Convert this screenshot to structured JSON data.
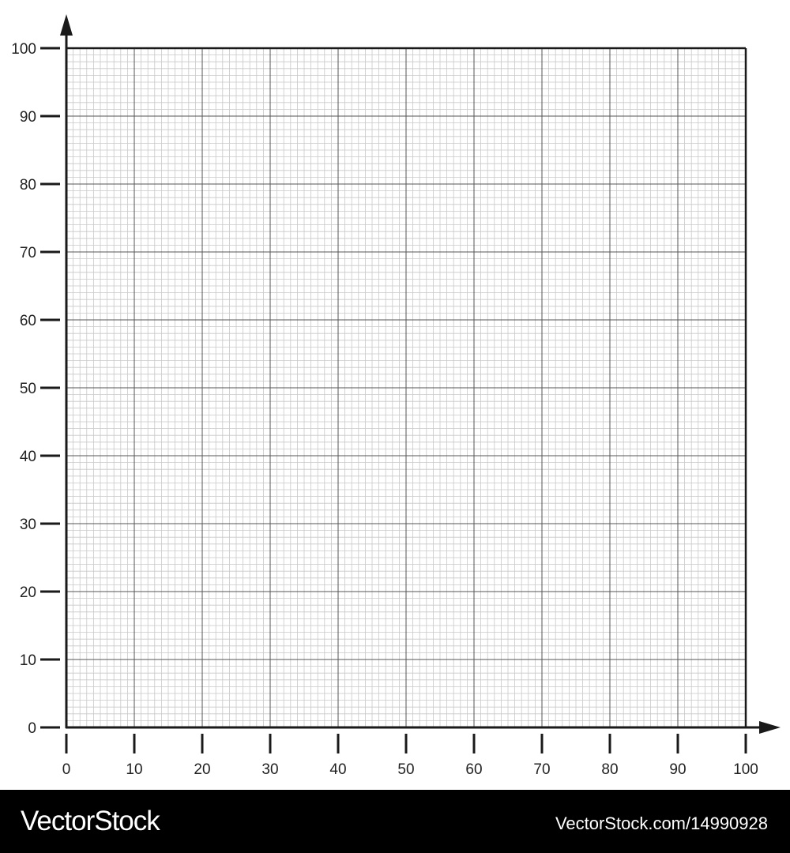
{
  "chart_data": {
    "type": "scatter",
    "title": "",
    "xlabel": "",
    "ylabel": "",
    "xlim": [
      0,
      100
    ],
    "ylim": [
      0,
      100
    ],
    "x_ticks": [
      "0",
      "10",
      "20",
      "30",
      "40",
      "50",
      "60",
      "70",
      "80",
      "90",
      "100"
    ],
    "y_ticks": [
      "0",
      "10",
      "20",
      "30",
      "40",
      "50",
      "60",
      "70",
      "80",
      "90",
      "100"
    ],
    "grid": {
      "major_step": 10,
      "minor_step": 1,
      "on": true
    },
    "series": [],
    "colors": {
      "axis": "#1a1a1a",
      "major_grid": "#555555",
      "minor_grid": "#c8c8c8"
    }
  },
  "watermark": {
    "brand": "VectorStock",
    "url": "VectorStock.com/14990928"
  }
}
